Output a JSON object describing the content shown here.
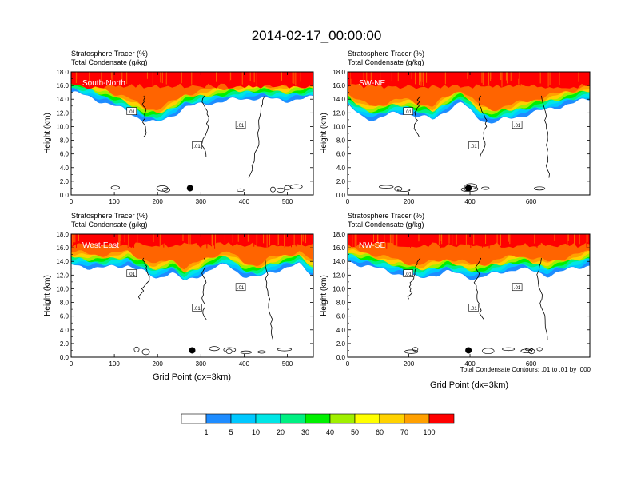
{
  "title": "2014-02-17_00:00:00",
  "subtitle_top": "Stratosphere Tracer   (%)",
  "subtitle_bottom": "Total Condensate   (g/kg)",
  "ylabel": "Height (km)",
  "xlabel": "Grid Point (dx=3km)",
  "contour_note": "Total Condensate Contours: .01 to .01 by .000",
  "contour_label": ".01",
  "colors": {
    "levels": [
      "#ffffff",
      "#1e8cff",
      "#00c8ff",
      "#00e6e6",
      "#00f082",
      "#00f000",
      "#a0f000",
      "#ffff00",
      "#ffd200",
      "#ffa000",
      "#ff6400",
      "#ff0000"
    ]
  },
  "colorbar": {
    "labels": [
      "1",
      "5",
      "10",
      "20",
      "30",
      "40",
      "50",
      "60",
      "70",
      "100"
    ]
  },
  "chart_data": [
    {
      "type": "heatmap",
      "name": "South-North",
      "xlim": [
        0,
        560
      ],
      "ylim": [
        0,
        18
      ],
      "xticks": [
        "0",
        "100",
        "200",
        "300",
        "400",
        "500"
      ],
      "yticks": [
        "0.0",
        "2.0",
        "4.0",
        "6.0",
        "8.0",
        "10.0",
        "12.0",
        "14.0",
        "16.0",
        "18.0"
      ],
      "tropopause_km": 15.5,
      "tracer_bottom_km": [
        15.0,
        14.5,
        13.8,
        13.0,
        12.2,
        11.0,
        10.5,
        11.5,
        12.8,
        13.2,
        13.5,
        13.8,
        14.0,
        14.2,
        14.0,
        13.8,
        14.0,
        14.2
      ],
      "marker": {
        "x": 275,
        "y": 1.0
      }
    },
    {
      "type": "heatmap",
      "name": "SW-NE",
      "xlim": [
        0,
        792
      ],
      "ylim": [
        0,
        18
      ],
      "xticks": [
        "0",
        "200",
        "400",
        "600"
      ],
      "yticks": [
        "0.0",
        "2.0",
        "4.0",
        "6.0",
        "8.0",
        "10.0",
        "12.0",
        "14.0",
        "16.0",
        "18.0"
      ],
      "tropopause_km": 15.5,
      "tracer_bottom_km": [
        13.0,
        11.5,
        11.0,
        11.8,
        12.0,
        11.5,
        11.0,
        12.5,
        13.5,
        11.5,
        10.5,
        11.0,
        11.5,
        12.0,
        12.5,
        13.0,
        13.5,
        14.0
      ],
      "marker": {
        "x": 395,
        "y": 1.0
      }
    },
    {
      "type": "heatmap",
      "name": "West-East",
      "xlim": [
        0,
        560
      ],
      "ylim": [
        0,
        18
      ],
      "xticks": [
        "0",
        "100",
        "200",
        "300",
        "400",
        "500"
      ],
      "yticks": [
        "0.0",
        "2.0",
        "4.0",
        "6.0",
        "8.0",
        "10.0",
        "12.0",
        "14.0",
        "16.0",
        "18.0"
      ],
      "tropopause_km": 16.0,
      "tracer_bottom_km": [
        13.5,
        13.2,
        13.0,
        13.2,
        13.5,
        12.5,
        11.5,
        12.5,
        11.0,
        12.0,
        13.0,
        13.5,
        12.0,
        11.5,
        12.5,
        13.0,
        13.5,
        12.0
      ],
      "marker": {
        "x": 280,
        "y": 1.0
      }
    },
    {
      "type": "heatmap",
      "name": "NW-SE",
      "xlim": [
        0,
        792
      ],
      "ylim": [
        0,
        18
      ],
      "xticks": [
        "0",
        "200",
        "400",
        "600"
      ],
      "yticks": [
        "0.0",
        "2.0",
        "4.0",
        "6.0",
        "8.0",
        "10.0",
        "12.0",
        "14.0",
        "16.0",
        "18.0"
      ],
      "tropopause_km": 16.0,
      "tracer_bottom_km": [
        14.0,
        13.5,
        13.0,
        12.5,
        12.0,
        11.5,
        12.0,
        12.5,
        12.0,
        11.5,
        12.0,
        12.5,
        13.0,
        12.5,
        12.0,
        12.5,
        13.0,
        13.5
      ],
      "marker": {
        "x": 395,
        "y": 1.0
      }
    }
  ]
}
